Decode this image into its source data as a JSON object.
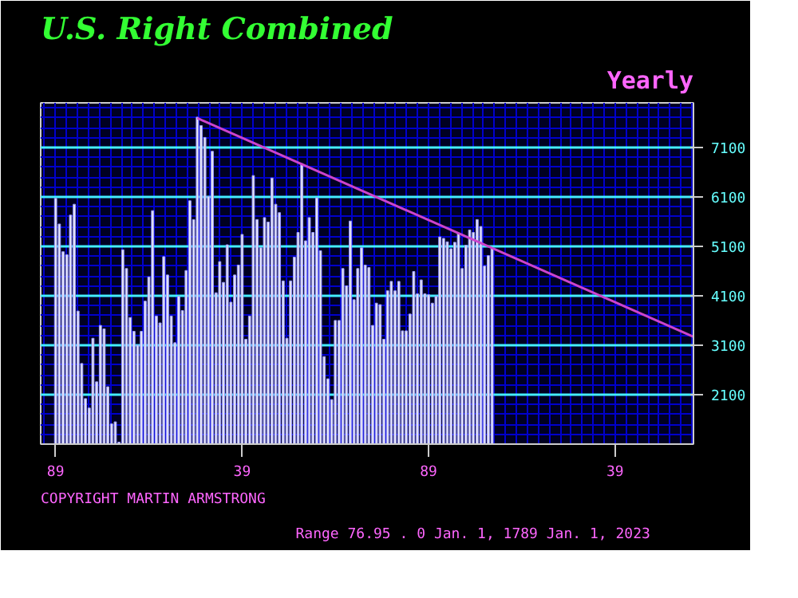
{
  "chart_data": {
    "type": "bar",
    "title": "U.S. Right Combined",
    "subtitle": "Yearly",
    "annotations": [
      "COPYRIGHT MARTIN ARMSTRONG",
      "Range  76.95 . 0 Jan.  1,  1789 Jan.  1,  2023"
    ],
    "x": [
      "1789",
      "1790",
      "1791",
      "1792",
      "1793",
      "1794",
      "1795",
      "1796",
      "1797",
      "1798",
      "1799",
      "1800",
      "1801",
      "1802",
      "1803",
      "1804",
      "1805",
      "1806",
      "1807",
      "1808",
      "1809",
      "1810",
      "1811",
      "1812",
      "1813",
      "1814",
      "1815",
      "1816",
      "1817",
      "1818",
      "1819",
      "1820",
      "1821",
      "1822",
      "1823",
      "1824",
      "1825",
      "1826",
      "1827",
      "1828",
      "1829",
      "1830",
      "1831",
      "1832",
      "1833",
      "1834",
      "1835",
      "1836",
      "1837",
      "1838",
      "1839",
      "1840",
      "1841",
      "1842",
      "1843",
      "1844",
      "1845",
      "1846",
      "1847",
      "1848",
      "1849",
      "1850",
      "1851",
      "1852",
      "1853",
      "1854",
      "1855",
      "1856",
      "1857",
      "1858",
      "1859",
      "1860",
      "1861",
      "1862",
      "1863",
      "1864",
      "1865",
      "1866",
      "1867",
      "1868",
      "1869",
      "1870",
      "1871",
      "1872",
      "1873",
      "1874",
      "1875",
      "1876",
      "1877",
      "1878",
      "1879",
      "1880",
      "1881",
      "1882",
      "1883",
      "1884",
      "1885",
      "1886",
      "1887",
      "1888",
      "1889",
      "1890",
      "1891",
      "1892",
      "1893",
      "1894",
      "1895",
      "1896",
      "1897",
      "1898",
      "1899",
      "1900",
      "1901",
      "1902",
      "1903",
      "1904",
      "1905",
      "1906"
    ],
    "series": [
      {
        "color": "#e8e8f0",
        "values": [
          6070,
          5550,
          4990,
          4930,
          5730,
          5950,
          3790,
          2730,
          2020,
          1830,
          3240,
          2360,
          3500,
          3430,
          2260,
          1510,
          1550,
          1140,
          5030,
          4650,
          3660,
          3380,
          3100,
          3380,
          3990,
          4480,
          5820,
          3690,
          3550,
          4890,
          4520,
          3690,
          3150,
          4090,
          3800,
          4610,
          6020,
          5640,
          7710,
          7540,
          7300,
          6110,
          7020,
          4160,
          4790,
          4370,
          5130,
          3970,
          4520,
          4720,
          5340,
          3220,
          3690,
          6530,
          5640,
          5070,
          5680,
          5590,
          6480,
          5950,
          5780,
          4400,
          3240,
          4400,
          4880,
          5380,
          6770,
          5210,
          5680,
          5380,
          6080,
          5010,
          2870,
          2420,
          2000,
          3600,
          3600,
          4650,
          4300,
          5610,
          4020,
          4650,
          5070,
          4720,
          4670,
          3500,
          3950,
          3920,
          3220,
          4200,
          4390,
          4200,
          4390,
          3390,
          3390,
          3730,
          4590,
          4140,
          4420,
          4140,
          4120,
          3950,
          4090,
          5290,
          5260,
          5190,
          5050,
          5180,
          5360,
          4650,
          5120,
          5430,
          5380,
          5640,
          5500,
          4700,
          4910,
          5060
        ]
      },
      {
        "type": "line",
        "color": "#cc44cc",
        "x": [
          "1827",
          "1960"
        ],
        "values": [
          7690,
          3270
        ]
      }
    ],
    "xlim": [
      "1785",
      "1960"
    ],
    "ylim": [
      1100,
      8000
    ],
    "xticks": [
      {
        "value": "1789",
        "label": "89"
      },
      {
        "value": "1839",
        "label": "39"
      },
      {
        "value": "1889",
        "label": "89"
      },
      {
        "value": "1939",
        "label": "39"
      }
    ],
    "yticks": [
      2100,
      3100,
      4100,
      5100,
      6100,
      7100
    ],
    "grid": true
  }
}
